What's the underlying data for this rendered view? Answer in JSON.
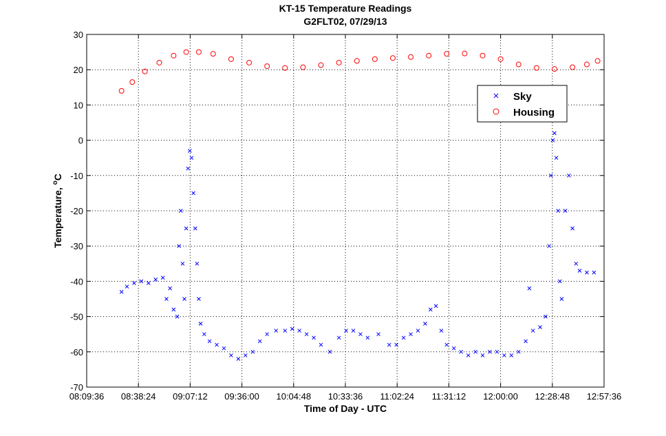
{
  "chart_data": {
    "type": "scatter",
    "title": "KT-15 Temperature Readings",
    "subtitle": "G2FLT02, 07/29/13",
    "xlabel": "Time of Day - UTC",
    "ylabel_main": "Temperature, ",
    "ylabel_sup": "o",
    "ylabel_unit": "C",
    "xlim": [
      "08:09:36",
      "12:57:36"
    ],
    "xticks": [
      "08:09:36",
      "08:38:24",
      "09:07:12",
      "09:36:00",
      "10:04:48",
      "10:33:36",
      "11:02:24",
      "11:31:12",
      "12:00:00",
      "12:28:48",
      "12:57:36"
    ],
    "ylim": [
      -70,
      30
    ],
    "yticks": [
      -70,
      -60,
      -50,
      -40,
      -30,
      -20,
      -10,
      0,
      10,
      20,
      30
    ],
    "grid": true,
    "legend_position": "top-right",
    "colors": {
      "sky": "#0000ff",
      "housing": "#ff0000"
    },
    "series": [
      {
        "name": "Sky",
        "marker": "x",
        "color": "#0000ff",
        "points": [
          [
            "08:29:00",
            -43
          ],
          [
            "08:32:00",
            -41.5
          ],
          [
            "08:36:00",
            -40.5
          ],
          [
            "08:40:00",
            -40
          ],
          [
            "08:44:00",
            -40.5
          ],
          [
            "08:48:00",
            -39.5
          ],
          [
            "08:52:00",
            -39
          ],
          [
            "08:54:00",
            -45
          ],
          [
            "08:56:00",
            -42
          ],
          [
            "08:58:00",
            -48
          ],
          [
            "09:00:00",
            -50
          ],
          [
            "09:01:00",
            -30
          ],
          [
            "09:02:00",
            -20
          ],
          [
            "09:03:00",
            -35
          ],
          [
            "09:04:00",
            -45
          ],
          [
            "09:05:00",
            -25
          ],
          [
            "09:06:00",
            -8
          ],
          [
            "09:07:00",
            -3
          ],
          [
            "09:08:00",
            -5
          ],
          [
            "09:09:00",
            -15
          ],
          [
            "09:10:00",
            -25
          ],
          [
            "09:11:00",
            -35
          ],
          [
            "09:12:00",
            -45
          ],
          [
            "09:13:00",
            -52
          ],
          [
            "09:15:00",
            -55
          ],
          [
            "09:18:00",
            -57
          ],
          [
            "09:22:00",
            -58
          ],
          [
            "09:26:00",
            -59
          ],
          [
            "09:30:00",
            -61
          ],
          [
            "09:34:00",
            -62
          ],
          [
            "09:38:00",
            -61
          ],
          [
            "09:42:00",
            -60
          ],
          [
            "09:46:00",
            -57
          ],
          [
            "09:50:00",
            -55
          ],
          [
            "09:55:00",
            -54
          ],
          [
            "10:00:00",
            -54
          ],
          [
            "10:04:00",
            -53.5
          ],
          [
            "10:08:00",
            -54
          ],
          [
            "10:12:00",
            -55
          ],
          [
            "10:16:00",
            -56
          ],
          [
            "10:20:00",
            -58
          ],
          [
            "10:25:00",
            -60
          ],
          [
            "10:30:00",
            -56
          ],
          [
            "10:34:00",
            -54
          ],
          [
            "10:38:00",
            -54
          ],
          [
            "10:42:00",
            -55
          ],
          [
            "10:46:00",
            -56
          ],
          [
            "10:52:00",
            -55
          ],
          [
            "10:58:00",
            -58
          ],
          [
            "11:02:00",
            -58
          ],
          [
            "11:06:00",
            -56
          ],
          [
            "11:10:00",
            -55
          ],
          [
            "11:14:00",
            -54
          ],
          [
            "11:18:00",
            -52
          ],
          [
            "11:21:00",
            -48
          ],
          [
            "11:24:00",
            -47
          ],
          [
            "11:27:00",
            -54
          ],
          [
            "11:30:00",
            -58
          ],
          [
            "11:34:00",
            -59
          ],
          [
            "11:38:00",
            -60
          ],
          [
            "11:42:00",
            -61
          ],
          [
            "11:46:00",
            -60
          ],
          [
            "11:50:00",
            -61
          ],
          [
            "11:54:00",
            -60
          ],
          [
            "11:58:00",
            -60
          ],
          [
            "12:02:00",
            -61
          ],
          [
            "12:06:00",
            -61
          ],
          [
            "12:10:00",
            -60
          ],
          [
            "12:14:00",
            -57
          ],
          [
            "12:16:00",
            -42
          ],
          [
            "12:18:00",
            -54
          ],
          [
            "12:22:00",
            -53
          ],
          [
            "12:25:00",
            -50
          ],
          [
            "12:27:00",
            -30
          ],
          [
            "12:28:00",
            -10
          ],
          [
            "12:29:00",
            0
          ],
          [
            "12:30:00",
            2
          ],
          [
            "12:31:00",
            -5
          ],
          [
            "12:32:00",
            -20
          ],
          [
            "12:33:00",
            -40
          ],
          [
            "12:34:00",
            -45
          ],
          [
            "12:36:00",
            -20
          ],
          [
            "12:38:00",
            -10
          ],
          [
            "12:40:00",
            -25
          ],
          [
            "12:42:00",
            -35
          ],
          [
            "12:44:00",
            -37
          ],
          [
            "12:48:00",
            -37.5
          ],
          [
            "12:52:00",
            -37.5
          ]
        ]
      },
      {
        "name": "Housing",
        "marker": "o",
        "color": "#ff0000",
        "points": [
          [
            "08:29:00",
            14
          ],
          [
            "08:35:00",
            16.5
          ],
          [
            "08:42:00",
            19.5
          ],
          [
            "08:50:00",
            22
          ],
          [
            "08:58:00",
            24
          ],
          [
            "09:05:00",
            25
          ],
          [
            "09:12:00",
            25
          ],
          [
            "09:20:00",
            24.5
          ],
          [
            "09:30:00",
            23
          ],
          [
            "09:40:00",
            22
          ],
          [
            "09:50:00",
            21
          ],
          [
            "10:00:00",
            20.5
          ],
          [
            "10:10:00",
            20.7
          ],
          [
            "10:20:00",
            21.3
          ],
          [
            "10:30:00",
            22
          ],
          [
            "10:40:00",
            22.5
          ],
          [
            "10:50:00",
            23
          ],
          [
            "11:00:00",
            23.3
          ],
          [
            "11:10:00",
            23.6
          ],
          [
            "11:20:00",
            24
          ],
          [
            "11:30:00",
            24.5
          ],
          [
            "11:40:00",
            24.6
          ],
          [
            "11:50:00",
            24
          ],
          [
            "12:00:00",
            23
          ],
          [
            "12:10:00",
            21.5
          ],
          [
            "12:20:00",
            20.5
          ],
          [
            "12:30:00",
            20.2
          ],
          [
            "12:40:00",
            20.7
          ],
          [
            "12:48:00",
            21.5
          ],
          [
            "12:54:00",
            22.5
          ]
        ]
      }
    ]
  }
}
